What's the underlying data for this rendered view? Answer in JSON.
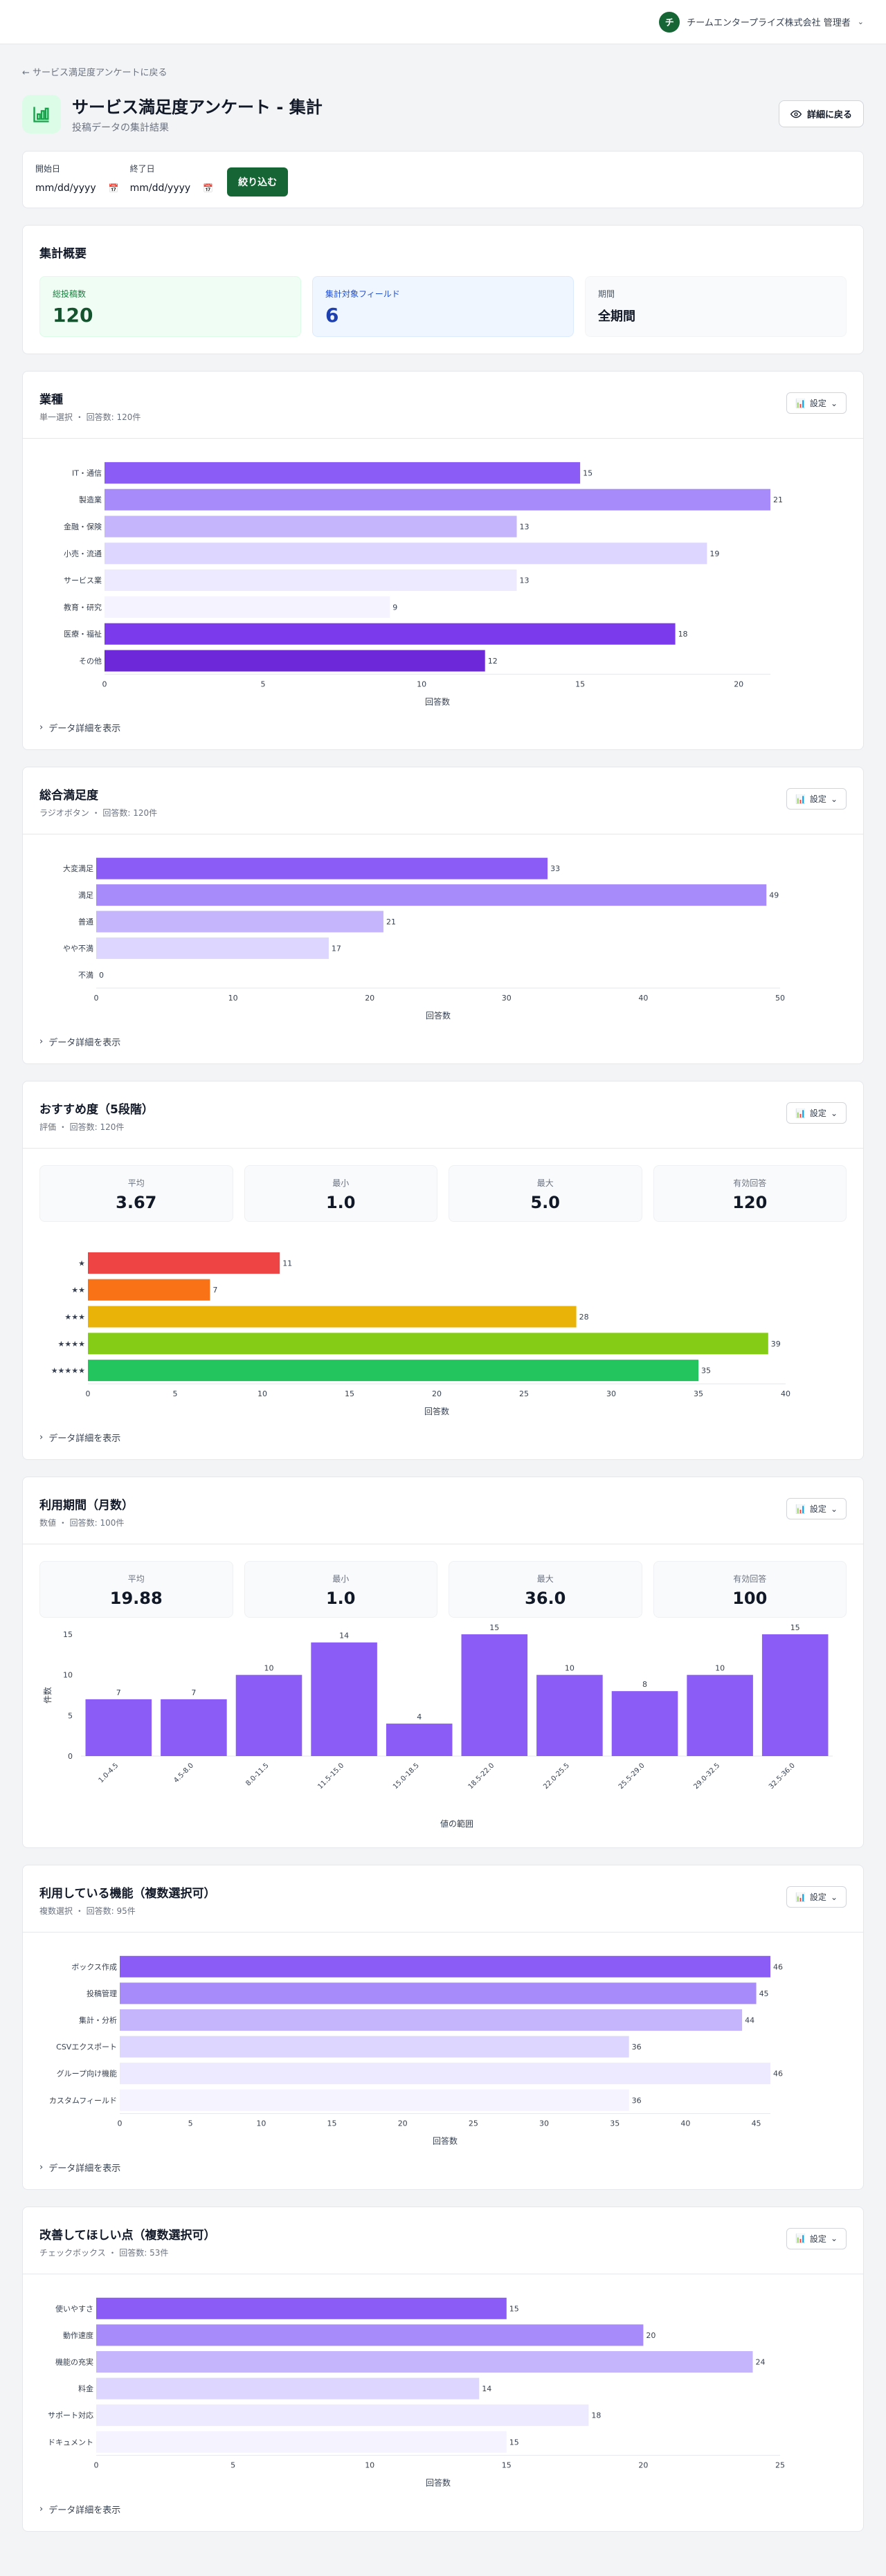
{
  "header": {
    "avatar_letter": "チ",
    "org_user": "チームエンタープライズ株式会社 管理者"
  },
  "nav": {
    "back_link": "← サービス満足度アンケートに戻る"
  },
  "title": {
    "main": "サービス満足度アンケート - 集計",
    "sub": "投稿データの集計結果",
    "detail_button": "詳細に戻る"
  },
  "filter": {
    "start_label": "開始日",
    "start_value": "mm/dd/yyyy",
    "end_label": "終了日",
    "end_value": "mm/dd/yyyy",
    "apply_button": "絞り込む"
  },
  "summary": {
    "title": "集計概要",
    "total_label": "総投稿数",
    "total_value": "120",
    "fields_label": "集計対象フィールド",
    "fields_value": "6",
    "period_label": "期間",
    "period_value": "全期間"
  },
  "common": {
    "settings_label": "設定",
    "details_toggle": "データ詳細を表示",
    "x_axis_label": "回答数"
  },
  "questions": {
    "industry": {
      "title": "業種",
      "meta": "単一選択 ・ 回答数: 120件"
    },
    "satisfaction": {
      "title": "総合満足度",
      "meta": "ラジオボタン ・ 回答数: 120件"
    },
    "recommend": {
      "title": "おすすめ度（5段階）",
      "meta": "評価 ・ 回答数: 120件",
      "stats": [
        {
          "label": "平均",
          "value": "3.67"
        },
        {
          "label": "最小",
          "value": "1.0"
        },
        {
          "label": "最大",
          "value": "5.0"
        },
        {
          "label": "有効回答",
          "value": "120"
        }
      ]
    },
    "period": {
      "title": "利用期間（月数）",
      "meta": "数値 ・ 回答数: 100件",
      "stats": [
        {
          "label": "平均",
          "value": "19.88"
        },
        {
          "label": "最小",
          "value": "1.0"
        },
        {
          "label": "最大",
          "value": "36.0"
        },
        {
          "label": "有効回答",
          "value": "100"
        }
      ]
    },
    "features": {
      "title": "利用している機能（複数選択可）",
      "meta": "複数選択 ・ 回答数: 95件"
    },
    "improve": {
      "title": "改善してほしい点（複数選択可）",
      "meta": "チェックボックス ・ 回答数: 53件"
    }
  },
  "colors": {
    "primary": "#166534",
    "purple": [
      "#8b5cf6",
      "#a78bfa",
      "#c4b5fd",
      "#ddd6fe",
      "#ede9fe",
      "#f5f3ff",
      "#7c3aed",
      "#6d28d9"
    ],
    "stars": [
      "#ef4444",
      "#f97316",
      "#eab308",
      "#84cc16",
      "#22c55e"
    ]
  },
  "chart_data": [
    {
      "id": "industry",
      "type": "bar",
      "orientation": "horizontal",
      "categories": [
        "IT・通信",
        "製造業",
        "金融・保険",
        "小売・流通",
        "サービス業",
        "教育・研究",
        "医療・福祉",
        "その他"
      ],
      "values": [
        15,
        21,
        13,
        19,
        13,
        9,
        18,
        12
      ],
      "xlabel": "回答数",
      "xlim": [
        0,
        21
      ],
      "xticks": [
        0,
        5,
        10,
        15,
        20
      ]
    },
    {
      "id": "satisfaction",
      "type": "bar",
      "orientation": "horizontal",
      "categories": [
        "大変満足",
        "満足",
        "普通",
        "やや不満",
        "不満"
      ],
      "values": [
        33,
        49,
        21,
        17,
        0
      ],
      "xlabel": "回答数",
      "xlim": [
        0,
        50
      ],
      "xticks": [
        0,
        10,
        20,
        30,
        40,
        50
      ]
    },
    {
      "id": "recommend",
      "type": "bar",
      "orientation": "horizontal",
      "categories": [
        "★",
        "★★",
        "★★★",
        "★★★★",
        "★★★★★"
      ],
      "values": [
        11,
        7,
        28,
        39,
        35
      ],
      "xlabel": "回答数",
      "xlim": [
        0,
        40
      ],
      "xticks": [
        0,
        5,
        10,
        15,
        20,
        25,
        30,
        35,
        40
      ]
    },
    {
      "id": "period",
      "type": "bar",
      "orientation": "vertical",
      "categories": [
        "1.0-4.5",
        "4.5-8.0",
        "8.0-11.5",
        "11.5-15.0",
        "15.0-18.5",
        "18.5-22.0",
        "22.0-25.5",
        "25.5-29.0",
        "29.0-32.5",
        "32.5-36.0"
      ],
      "values": [
        7,
        7,
        10,
        14,
        4,
        15,
        10,
        8,
        10,
        15
      ],
      "xlabel": "値の範囲",
      "ylabel": "件数",
      "ylim": [
        0,
        15
      ],
      "yticks": [
        0,
        5,
        10,
        15
      ]
    },
    {
      "id": "features",
      "type": "bar",
      "orientation": "horizontal",
      "categories": [
        "ボックス作成",
        "投稿管理",
        "集計・分析",
        "CSVエクスポート",
        "グループ向け機能",
        "カスタムフィールド"
      ],
      "values": [
        46,
        45,
        44,
        36,
        46,
        36
      ],
      "xlabel": "回答数",
      "xlim": [
        0,
        46
      ],
      "xticks": [
        0,
        5,
        10,
        15,
        20,
        25,
        30,
        35,
        40,
        45
      ]
    },
    {
      "id": "improve",
      "type": "bar",
      "orientation": "horizontal",
      "categories": [
        "使いやすさ",
        "動作速度",
        "機能の充実",
        "料金",
        "サポート対応",
        "ドキュメント"
      ],
      "values": [
        15,
        20,
        24,
        14,
        18,
        15
      ],
      "xlabel": "回答数",
      "xlim": [
        0,
        25
      ],
      "xticks": [
        0,
        5,
        10,
        15,
        20,
        25
      ]
    }
  ]
}
